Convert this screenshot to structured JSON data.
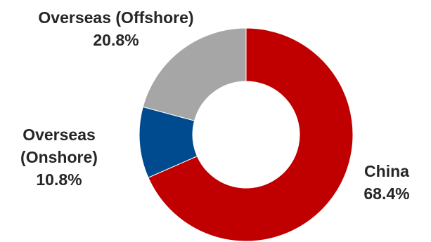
{
  "chart_data": {
    "type": "pie",
    "donut": true,
    "slices": [
      {
        "label": "China",
        "value": 68.4,
        "value_label": "68.4%",
        "color": "#C00000"
      },
      {
        "label": "Overseas (Onshore)",
        "value": 10.8,
        "value_label": "10.8%",
        "color": "#004A8F"
      },
      {
        "label": "Overseas (Offshore)",
        "value": 20.8,
        "value_label": "20.8%",
        "color": "#A6A6A6"
      }
    ],
    "legend": "none"
  }
}
